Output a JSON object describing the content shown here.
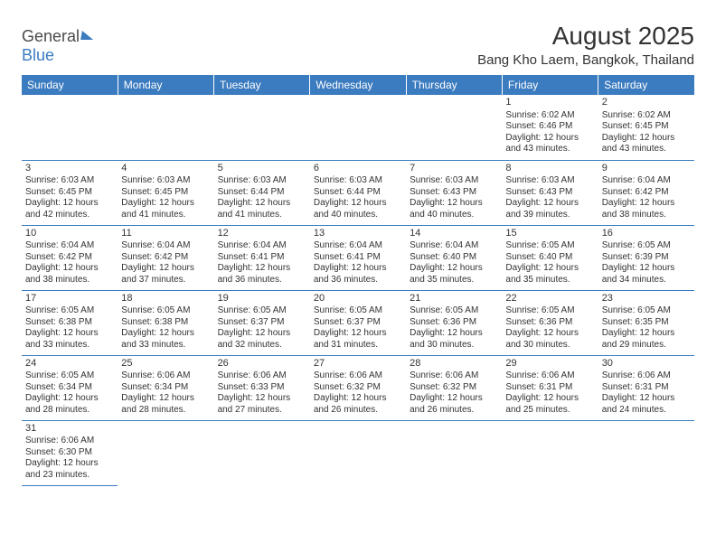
{
  "colors": {
    "header_bg": "#3b7bbf",
    "header_text": "#ffffff",
    "cell_border": "#3b7bbf",
    "text": "#333333",
    "logo_gray": "#4a4a4a",
    "logo_blue": "#3b7bbf",
    "background": "#ffffff"
  },
  "typography": {
    "title_fontsize": 28,
    "subtitle_fontsize": 15,
    "day_header_fontsize": 12,
    "daynum_fontsize": 11,
    "cell_fontsize": 10
  },
  "logo": {
    "part1": "General",
    "part2": "Blue"
  },
  "title": "August 2025",
  "subtitle": "Bang Kho Laem, Bangkok, Thailand",
  "day_headers": [
    "Sunday",
    "Monday",
    "Tuesday",
    "Wednesday",
    "Thursday",
    "Friday",
    "Saturday"
  ],
  "weeks": [
    [
      null,
      null,
      null,
      null,
      null,
      {
        "n": "1",
        "sunrise": "Sunrise: 6:02 AM",
        "sunset": "Sunset: 6:46 PM",
        "d1": "Daylight: 12 hours",
        "d2": "and 43 minutes."
      },
      {
        "n": "2",
        "sunrise": "Sunrise: 6:02 AM",
        "sunset": "Sunset: 6:45 PM",
        "d1": "Daylight: 12 hours",
        "d2": "and 43 minutes."
      }
    ],
    [
      {
        "n": "3",
        "sunrise": "Sunrise: 6:03 AM",
        "sunset": "Sunset: 6:45 PM",
        "d1": "Daylight: 12 hours",
        "d2": "and 42 minutes."
      },
      {
        "n": "4",
        "sunrise": "Sunrise: 6:03 AM",
        "sunset": "Sunset: 6:45 PM",
        "d1": "Daylight: 12 hours",
        "d2": "and 41 minutes."
      },
      {
        "n": "5",
        "sunrise": "Sunrise: 6:03 AM",
        "sunset": "Sunset: 6:44 PM",
        "d1": "Daylight: 12 hours",
        "d2": "and 41 minutes."
      },
      {
        "n": "6",
        "sunrise": "Sunrise: 6:03 AM",
        "sunset": "Sunset: 6:44 PM",
        "d1": "Daylight: 12 hours",
        "d2": "and 40 minutes."
      },
      {
        "n": "7",
        "sunrise": "Sunrise: 6:03 AM",
        "sunset": "Sunset: 6:43 PM",
        "d1": "Daylight: 12 hours",
        "d2": "and 40 minutes."
      },
      {
        "n": "8",
        "sunrise": "Sunrise: 6:03 AM",
        "sunset": "Sunset: 6:43 PM",
        "d1": "Daylight: 12 hours",
        "d2": "and 39 minutes."
      },
      {
        "n": "9",
        "sunrise": "Sunrise: 6:04 AM",
        "sunset": "Sunset: 6:42 PM",
        "d1": "Daylight: 12 hours",
        "d2": "and 38 minutes."
      }
    ],
    [
      {
        "n": "10",
        "sunrise": "Sunrise: 6:04 AM",
        "sunset": "Sunset: 6:42 PM",
        "d1": "Daylight: 12 hours",
        "d2": "and 38 minutes."
      },
      {
        "n": "11",
        "sunrise": "Sunrise: 6:04 AM",
        "sunset": "Sunset: 6:42 PM",
        "d1": "Daylight: 12 hours",
        "d2": "and 37 minutes."
      },
      {
        "n": "12",
        "sunrise": "Sunrise: 6:04 AM",
        "sunset": "Sunset: 6:41 PM",
        "d1": "Daylight: 12 hours",
        "d2": "and 36 minutes."
      },
      {
        "n": "13",
        "sunrise": "Sunrise: 6:04 AM",
        "sunset": "Sunset: 6:41 PM",
        "d1": "Daylight: 12 hours",
        "d2": "and 36 minutes."
      },
      {
        "n": "14",
        "sunrise": "Sunrise: 6:04 AM",
        "sunset": "Sunset: 6:40 PM",
        "d1": "Daylight: 12 hours",
        "d2": "and 35 minutes."
      },
      {
        "n": "15",
        "sunrise": "Sunrise: 6:05 AM",
        "sunset": "Sunset: 6:40 PM",
        "d1": "Daylight: 12 hours",
        "d2": "and 35 minutes."
      },
      {
        "n": "16",
        "sunrise": "Sunrise: 6:05 AM",
        "sunset": "Sunset: 6:39 PM",
        "d1": "Daylight: 12 hours",
        "d2": "and 34 minutes."
      }
    ],
    [
      {
        "n": "17",
        "sunrise": "Sunrise: 6:05 AM",
        "sunset": "Sunset: 6:38 PM",
        "d1": "Daylight: 12 hours",
        "d2": "and 33 minutes."
      },
      {
        "n": "18",
        "sunrise": "Sunrise: 6:05 AM",
        "sunset": "Sunset: 6:38 PM",
        "d1": "Daylight: 12 hours",
        "d2": "and 33 minutes."
      },
      {
        "n": "19",
        "sunrise": "Sunrise: 6:05 AM",
        "sunset": "Sunset: 6:37 PM",
        "d1": "Daylight: 12 hours",
        "d2": "and 32 minutes."
      },
      {
        "n": "20",
        "sunrise": "Sunrise: 6:05 AM",
        "sunset": "Sunset: 6:37 PM",
        "d1": "Daylight: 12 hours",
        "d2": "and 31 minutes."
      },
      {
        "n": "21",
        "sunrise": "Sunrise: 6:05 AM",
        "sunset": "Sunset: 6:36 PM",
        "d1": "Daylight: 12 hours",
        "d2": "and 30 minutes."
      },
      {
        "n": "22",
        "sunrise": "Sunrise: 6:05 AM",
        "sunset": "Sunset: 6:36 PM",
        "d1": "Daylight: 12 hours",
        "d2": "and 30 minutes."
      },
      {
        "n": "23",
        "sunrise": "Sunrise: 6:05 AM",
        "sunset": "Sunset: 6:35 PM",
        "d1": "Daylight: 12 hours",
        "d2": "and 29 minutes."
      }
    ],
    [
      {
        "n": "24",
        "sunrise": "Sunrise: 6:05 AM",
        "sunset": "Sunset: 6:34 PM",
        "d1": "Daylight: 12 hours",
        "d2": "and 28 minutes."
      },
      {
        "n": "25",
        "sunrise": "Sunrise: 6:06 AM",
        "sunset": "Sunset: 6:34 PM",
        "d1": "Daylight: 12 hours",
        "d2": "and 28 minutes."
      },
      {
        "n": "26",
        "sunrise": "Sunrise: 6:06 AM",
        "sunset": "Sunset: 6:33 PM",
        "d1": "Daylight: 12 hours",
        "d2": "and 27 minutes."
      },
      {
        "n": "27",
        "sunrise": "Sunrise: 6:06 AM",
        "sunset": "Sunset: 6:32 PM",
        "d1": "Daylight: 12 hours",
        "d2": "and 26 minutes."
      },
      {
        "n": "28",
        "sunrise": "Sunrise: 6:06 AM",
        "sunset": "Sunset: 6:32 PM",
        "d1": "Daylight: 12 hours",
        "d2": "and 26 minutes."
      },
      {
        "n": "29",
        "sunrise": "Sunrise: 6:06 AM",
        "sunset": "Sunset: 6:31 PM",
        "d1": "Daylight: 12 hours",
        "d2": "and 25 minutes."
      },
      {
        "n": "30",
        "sunrise": "Sunrise: 6:06 AM",
        "sunset": "Sunset: 6:31 PM",
        "d1": "Daylight: 12 hours",
        "d2": "and 24 minutes."
      }
    ],
    [
      {
        "n": "31",
        "sunrise": "Sunrise: 6:06 AM",
        "sunset": "Sunset: 6:30 PM",
        "d1": "Daylight: 12 hours",
        "d2": "and 23 minutes."
      },
      null,
      null,
      null,
      null,
      null,
      null
    ]
  ]
}
